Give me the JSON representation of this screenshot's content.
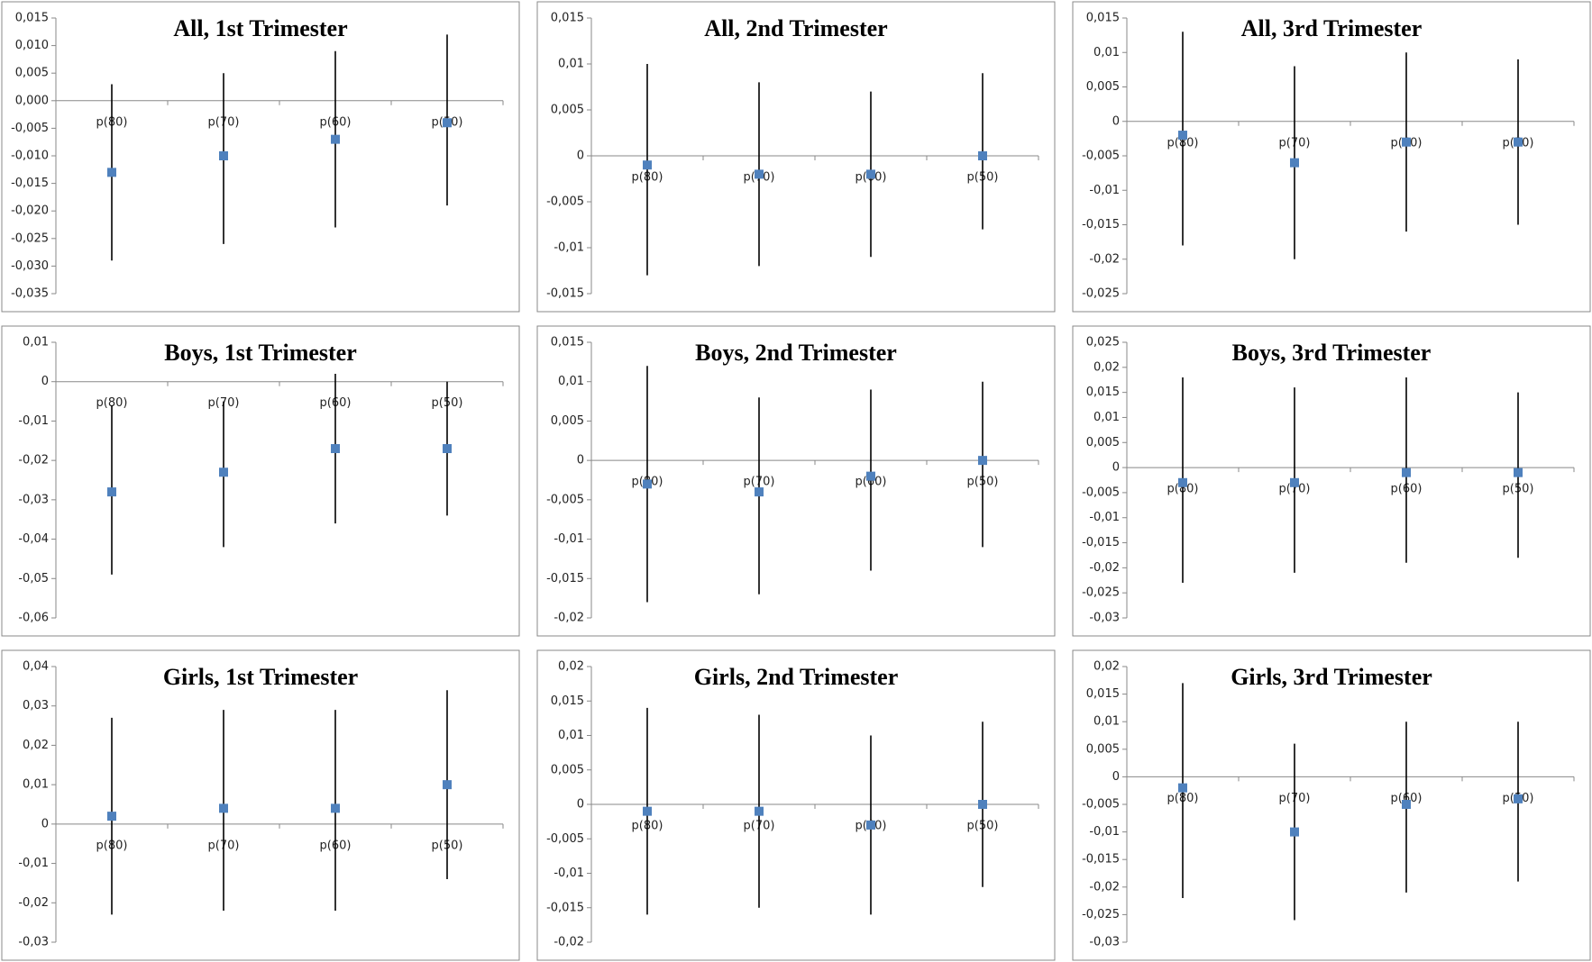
{
  "chart_data": [
    {
      "type": "errorbar",
      "title": "All, 1st Trimester",
      "categories": [
        "p(80)",
        "p(70)",
        "p(60)",
        "p(50)"
      ],
      "values": [
        -0.013,
        -0.01,
        -0.007,
        -0.004
      ],
      "low": [
        -0.029,
        -0.026,
        -0.023,
        -0.019
      ],
      "high": [
        0.003,
        0.005,
        0.009,
        0.012
      ],
      "color": "#4f81bd",
      "ylim": [
        -0.035,
        0.015
      ],
      "yticks": [
        {
          "value": 0.015,
          "label": "0,015"
        },
        {
          "value": 0.01,
          "label": "0,010"
        },
        {
          "value": 0.005,
          "label": "0,005"
        },
        {
          "value": 0,
          "label": "0,000"
        },
        {
          "value": -0.005,
          "label": "-0,005"
        },
        {
          "value": -0.01,
          "label": "-0,010"
        },
        {
          "value": -0.015,
          "label": "-0,015"
        },
        {
          "value": -0.02,
          "label": "-0,020"
        },
        {
          "value": -0.025,
          "label": "-0,025"
        },
        {
          "value": -0.03,
          "label": "-0,030"
        },
        {
          "value": -0.035,
          "label": "-0,035"
        }
      ]
    },
    {
      "type": "errorbar",
      "title": "All, 2nd Trimester",
      "categories": [
        "p(80)",
        "p(70)",
        "p(60)",
        "p(50)"
      ],
      "values": [
        -0.001,
        -0.002,
        -0.002,
        0
      ],
      "low": [
        -0.013,
        -0.012,
        -0.011,
        -0.008
      ],
      "high": [
        0.01,
        0.008,
        0.007,
        0.009
      ],
      "color": "#4f81bd",
      "ylim": [
        -0.015,
        0.015
      ],
      "yticks": [
        {
          "value": 0.015,
          "label": "0,015"
        },
        {
          "value": 0.01,
          "label": "0,01"
        },
        {
          "value": 0.005,
          "label": "0,005"
        },
        0,
        {
          "value": -0.005,
          "label": "-0,005"
        },
        {
          "value": -0.01,
          "label": "-0,01"
        },
        {
          "value": -0.015,
          "label": "-0,015"
        }
      ]
    },
    {
      "type": "errorbar",
      "title": "All, 3rd Trimester",
      "categories": [
        "p(80)",
        "p(70)",
        "p(60)",
        "p(50)"
      ],
      "values": [
        -0.002,
        -0.006,
        -0.003,
        -0.003
      ],
      "low": [
        -0.018,
        -0.02,
        -0.016,
        -0.015
      ],
      "high": [
        0.013,
        0.008,
        0.01,
        0.009
      ],
      "color": "#4f81bd",
      "ylim": [
        -0.025,
        0.015
      ],
      "yticks": [
        {
          "value": 0.015,
          "label": "0,015"
        },
        {
          "value": 0.01,
          "label": "0,01"
        },
        {
          "value": 0.005,
          "label": "0,005"
        },
        0,
        {
          "value": -0.005,
          "label": "-0,005"
        },
        {
          "value": -0.01,
          "label": "-0,01"
        },
        {
          "value": -0.015,
          "label": "-0,015"
        },
        {
          "value": -0.02,
          "label": "-0,02"
        },
        {
          "value": -0.025,
          "label": "-0,025"
        }
      ]
    },
    {
      "type": "errorbar",
      "title": "Boys, 1st Trimester",
      "categories": [
        "p(80)",
        "p(70)",
        "p(60)",
        "p(50)"
      ],
      "values": [
        -0.028,
        -0.023,
        -0.017,
        -0.017
      ],
      "low": [
        -0.049,
        -0.042,
        -0.036,
        -0.034
      ],
      "high": [
        -0.006,
        -0.005,
        0.002,
        0
      ],
      "color": "#4f81bd",
      "ylim": [
        -0.06,
        0.01
      ],
      "yticks": [
        {
          "value": 0.01,
          "label": "0,01"
        },
        0,
        {
          "value": -0.01,
          "label": "-0,01"
        },
        {
          "value": -0.02,
          "label": "-0,02"
        },
        {
          "value": -0.03,
          "label": "-0,03"
        },
        {
          "value": -0.04,
          "label": "-0,04"
        },
        {
          "value": -0.05,
          "label": "-0,05"
        },
        {
          "value": -0.06,
          "label": "-0,06"
        }
      ]
    },
    {
      "type": "errorbar",
      "title": "Boys, 2nd Trimester",
      "categories": [
        "p(80)",
        "p(70)",
        "p(60)",
        "p(50)"
      ],
      "values": [
        -0.003,
        -0.004,
        -0.002,
        0
      ],
      "low": [
        -0.018,
        -0.017,
        -0.014,
        -0.011
      ],
      "high": [
        0.012,
        0.008,
        0.009,
        0.01
      ],
      "color": "#4f81bd",
      "ylim": [
        -0.02,
        0.015
      ],
      "yticks": [
        {
          "value": 0.015,
          "label": "0,015"
        },
        {
          "value": 0.01,
          "label": "0,01"
        },
        {
          "value": 0.005,
          "label": "0,005"
        },
        0,
        {
          "value": -0.005,
          "label": "-0,005"
        },
        {
          "value": -0.01,
          "label": "-0,01"
        },
        {
          "value": -0.015,
          "label": "-0,015"
        },
        {
          "value": -0.02,
          "label": "-0,02"
        }
      ]
    },
    {
      "type": "errorbar",
      "title": "Boys, 3rd Trimester",
      "categories": [
        "p(80)",
        "p(70)",
        "p(60)",
        "p(50)"
      ],
      "values": [
        -0.003,
        -0.003,
        -0.001,
        -0.001
      ],
      "low": [
        -0.023,
        -0.021,
        -0.019,
        -0.018
      ],
      "high": [
        0.018,
        0.016,
        0.018,
        0.015
      ],
      "color": "#4f81bd",
      "ylim": [
        -0.03,
        0.025
      ],
      "yticks": [
        {
          "value": 0.025,
          "label": "0,025"
        },
        {
          "value": 0.02,
          "label": "0,02"
        },
        {
          "value": 0.015,
          "label": "0,015"
        },
        {
          "value": 0.01,
          "label": "0,01"
        },
        {
          "value": 0.005,
          "label": "0,005"
        },
        0,
        {
          "value": -0.005,
          "label": "-0,005"
        },
        {
          "value": -0.01,
          "label": "-0,01"
        },
        {
          "value": -0.015,
          "label": "-0,015"
        },
        {
          "value": -0.02,
          "label": "-0,02"
        },
        {
          "value": -0.025,
          "label": "-0,025"
        },
        {
          "value": -0.03,
          "label": "-0,03"
        }
      ]
    },
    {
      "type": "errorbar",
      "title": "Girls, 1st Trimester",
      "categories": [
        "p(80)",
        "p(70)",
        "p(60)",
        "p(50)"
      ],
      "values": [
        0.002,
        0.004,
        0.004,
        0.01
      ],
      "low": [
        -0.023,
        -0.022,
        -0.022,
        -0.014
      ],
      "high": [
        0.027,
        0.029,
        0.029,
        0.034
      ],
      "color": "#4f81bd",
      "ylim": [
        -0.03,
        0.04
      ],
      "yticks": [
        {
          "value": 0.04,
          "label": "0,04"
        },
        {
          "value": 0.03,
          "label": "0,03"
        },
        {
          "value": 0.02,
          "label": "0,02"
        },
        {
          "value": 0.01,
          "label": "0,01"
        },
        0,
        {
          "value": -0.01,
          "label": "-0,01"
        },
        {
          "value": -0.02,
          "label": "-0,02"
        },
        {
          "value": -0.03,
          "label": "-0,03"
        }
      ]
    },
    {
      "type": "errorbar",
      "title": "Girls, 2nd Trimester",
      "categories": [
        "p(80)",
        "p(70)",
        "p(60)",
        "p(50)"
      ],
      "values": [
        -0.001,
        -0.001,
        -0.003,
        0
      ],
      "low": [
        -0.016,
        -0.015,
        -0.016,
        -0.012
      ],
      "high": [
        0.014,
        0.013,
        0.01,
        0.012
      ],
      "color": "#4f81bd",
      "ylim": [
        -0.02,
        0.02
      ],
      "yticks": [
        {
          "value": 0.02,
          "label": "0,02"
        },
        {
          "value": 0.015,
          "label": "0,015"
        },
        {
          "value": 0.01,
          "label": "0,01"
        },
        {
          "value": 0.005,
          "label": "0,005"
        },
        0,
        {
          "value": -0.005,
          "label": "-0,005"
        },
        {
          "value": -0.01,
          "label": "-0,01"
        },
        {
          "value": -0.015,
          "label": "-0,015"
        },
        {
          "value": -0.02,
          "label": "-0,02"
        }
      ]
    },
    {
      "type": "errorbar",
      "title": "Girls, 3rd Trimester",
      "categories": [
        "p(80)",
        "p(70)",
        "p(60)",
        "p(50)"
      ],
      "values": [
        -0.002,
        -0.01,
        -0.005,
        -0.004
      ],
      "low": [
        -0.022,
        -0.026,
        -0.021,
        -0.019
      ],
      "high": [
        0.017,
        0.006,
        0.01,
        0.01
      ],
      "color": "#4f81bd",
      "ylim": [
        -0.03,
        0.02
      ],
      "yticks": [
        {
          "value": 0.02,
          "label": "0,02"
        },
        {
          "value": 0.015,
          "label": "0,015"
        },
        {
          "value": 0.01,
          "label": "0,01"
        },
        {
          "value": 0.005,
          "label": "0,005"
        },
        0,
        {
          "value": -0.005,
          "label": "-0,005"
        },
        {
          "value": -0.01,
          "label": "-0,01"
        },
        {
          "value": -0.015,
          "label": "-0,015"
        },
        {
          "value": -0.02,
          "label": "-0,02"
        },
        {
          "value": -0.025,
          "label": "-0,025"
        },
        {
          "value": -0.03,
          "label": "-0,03"
        }
      ]
    }
  ]
}
